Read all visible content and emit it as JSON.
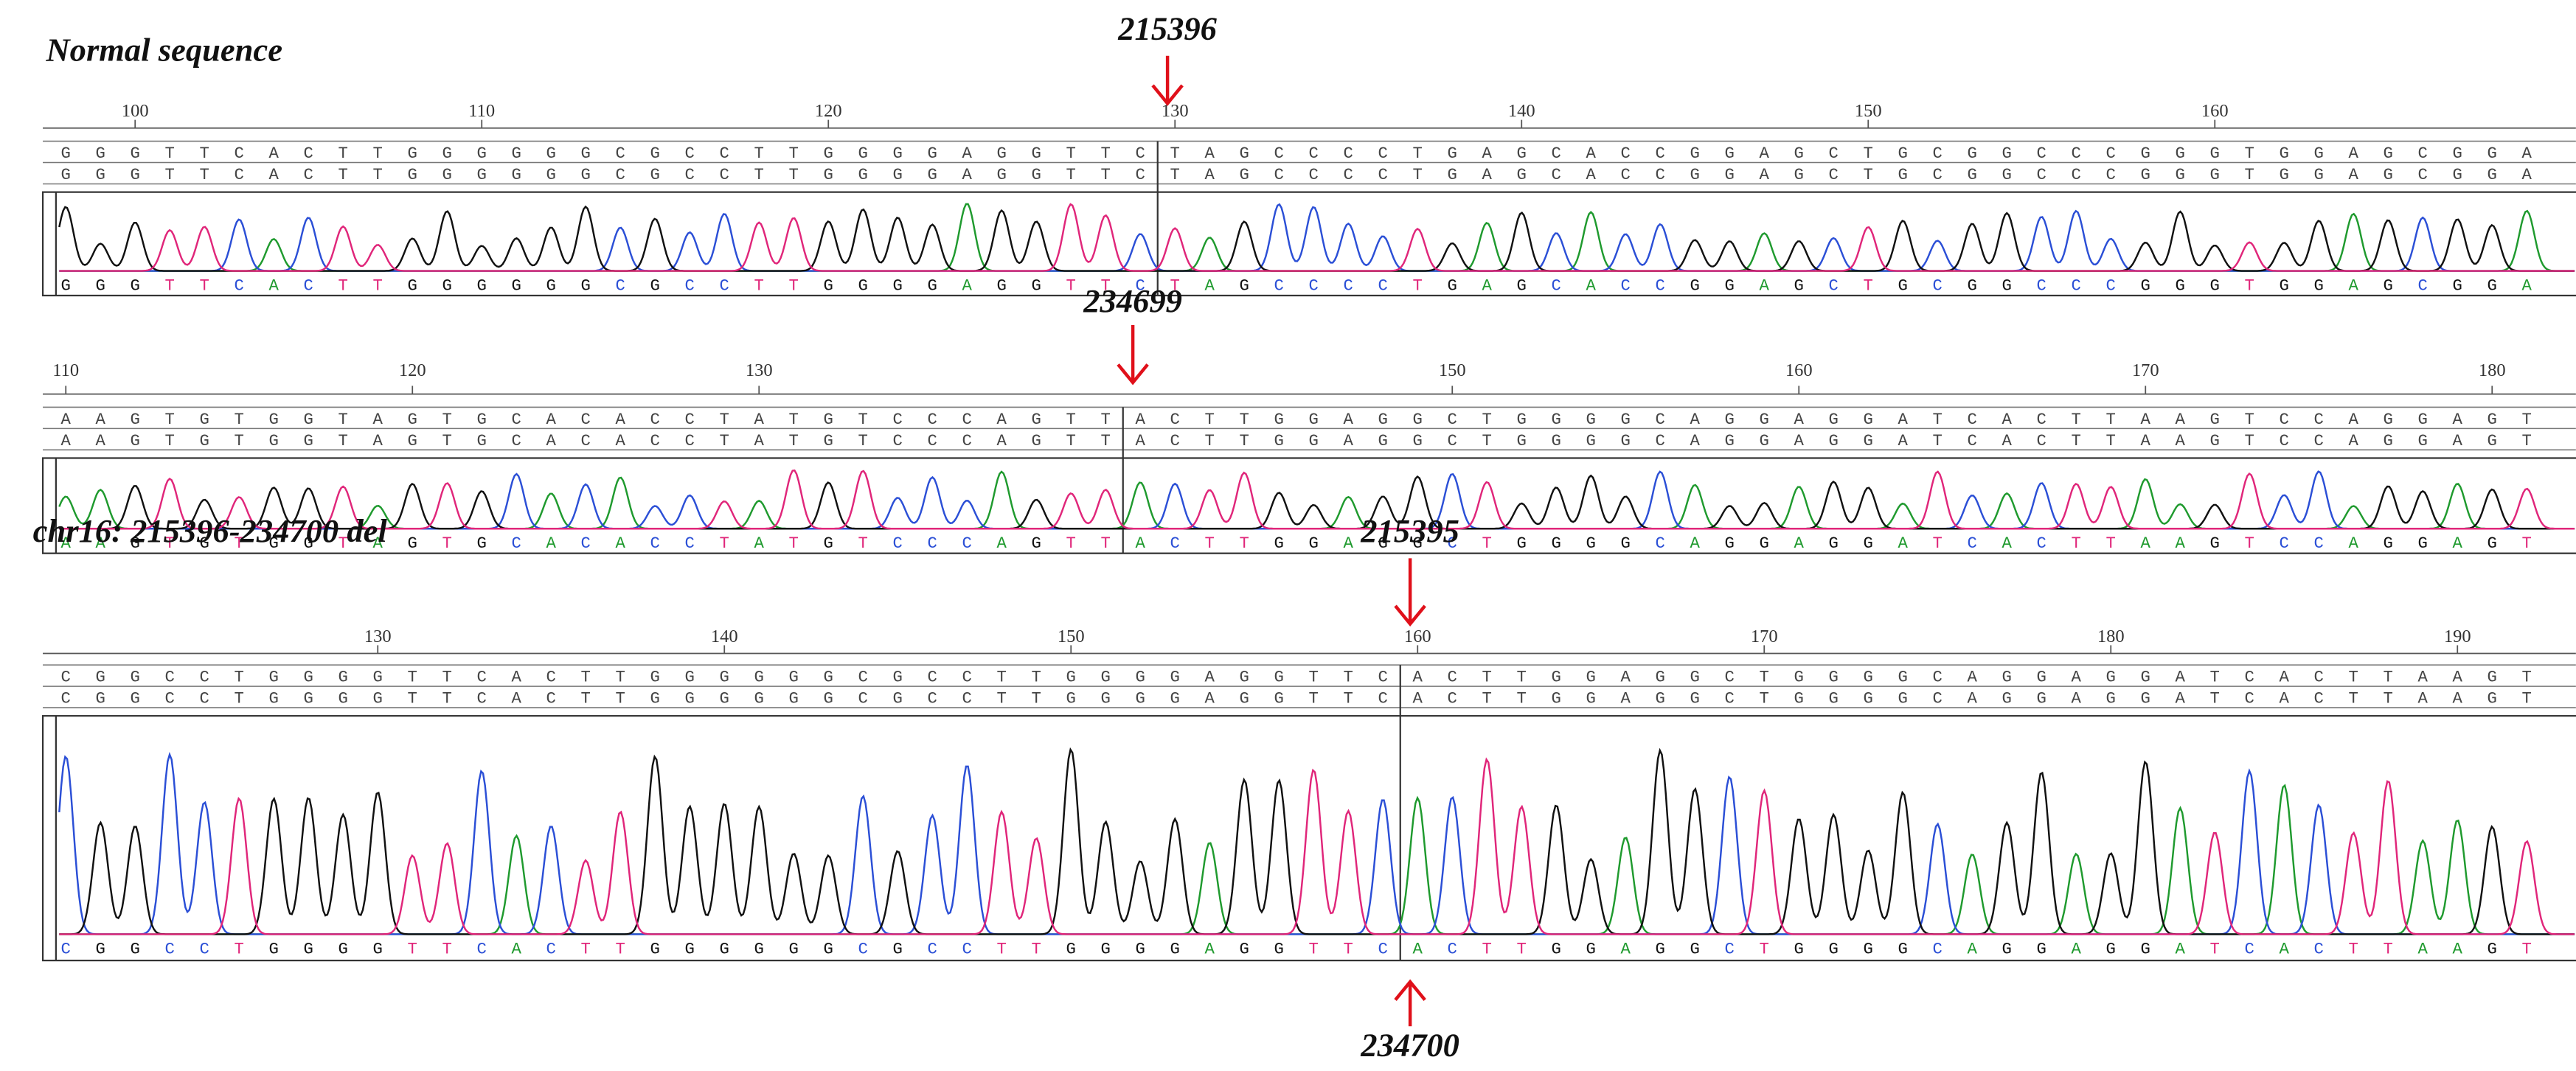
{
  "panels": [
    {
      "title": "Normal sequence",
      "arrows": [
        {
          "label": "215396",
          "direction": "down"
        }
      ],
      "ruler": {
        "xlim": [
          97.5,
          169.5
        ],
        "ticks": [
          100,
          110,
          120,
          130,
          140,
          150,
          160
        ]
      },
      "sequence": {
        "left": "GGGTTCACTTGGGGGGCGCCTTGGGGAGGTTC",
        "right": "TAGCCCCTGAGCACCGGAGCTGCGGCCCGGGTGGAGCGGA"
      }
    },
    {
      "arrows": [
        {
          "label": "234699",
          "direction": "down"
        }
      ],
      "ruler": {
        "xlim": [
          109.5,
          181.5
        ],
        "ticks": [
          110,
          120,
          130,
          150,
          160,
          170,
          180
        ]
      },
      "sequence": {
        "left": "AAGTGTGGTAGTGCACACCTATGTCCCAGTT",
        "right": "ACTTGGAGGCTGGGGCAGGAGGATCACTTAAGTCCAGGAGT"
      }
    },
    {
      "title": "chr16:  215396-234700 del",
      "arrows": [
        {
          "label": "215395",
          "direction": "down"
        },
        {
          "label": "234700",
          "direction": "up"
        }
      ],
      "ruler": {
        "xlim": [
          120.5,
          192.5
        ],
        "ticks": [
          130,
          140,
          150,
          160,
          170,
          180,
          190
        ]
      },
      "sequence": {
        "left": "CGGCCTGGGGTTCACTTGGGGGGCGCCTTGGGGAGGTTC",
        "right": "ACTTGGAGGCTGGGGCAGGAGGATCACTTAAGT"
      }
    }
  ]
}
